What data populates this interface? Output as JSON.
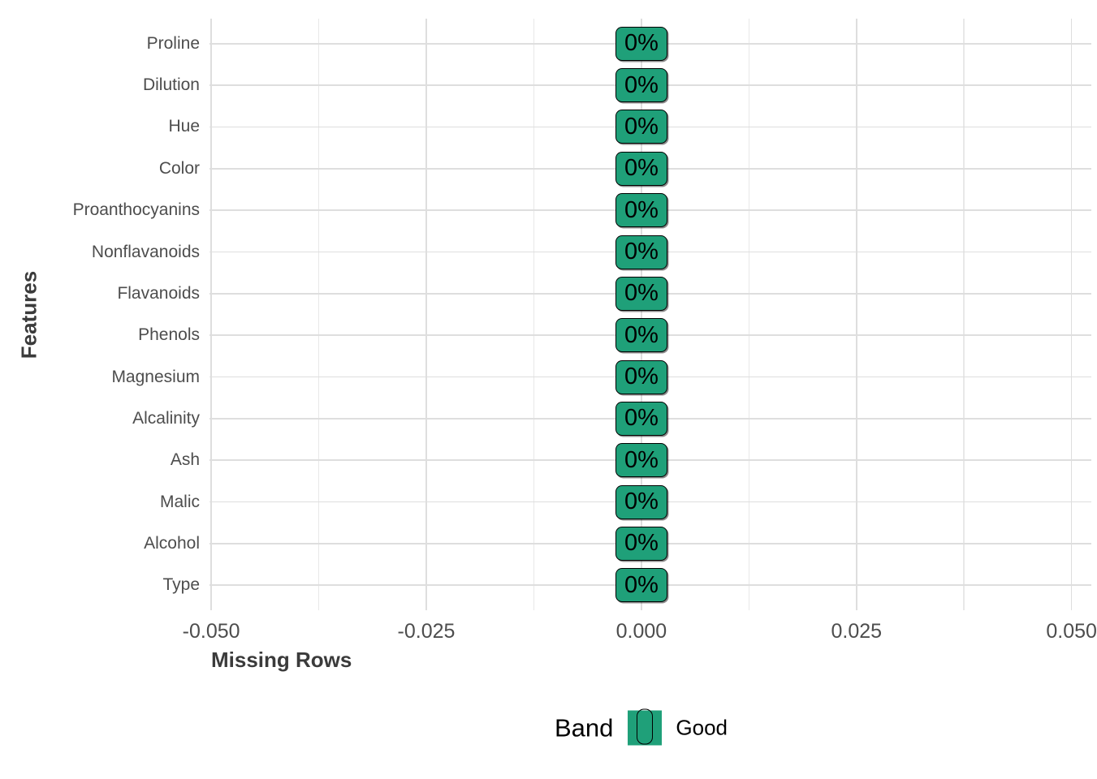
{
  "chart_data": {
    "type": "bar",
    "orientation": "horizontal",
    "title": "",
    "xlabel": "Missing Rows",
    "ylabel": "Features",
    "categories": [
      "Proline",
      "Dilution",
      "Hue",
      "Color",
      "Proanthocyanins",
      "Nonflavanoids",
      "Flavanoids",
      "Phenols",
      "Magnesium",
      "Alcalinity",
      "Ash",
      "Malic",
      "Alcohol",
      "Type"
    ],
    "series": [
      {
        "name": "Missing Rows",
        "values": [
          0,
          0,
          0,
          0,
          0,
          0,
          0,
          0,
          0,
          0,
          0,
          0,
          0,
          0
        ]
      }
    ],
    "bar_labels": [
      "0%",
      "0%",
      "0%",
      "0%",
      "0%",
      "0%",
      "0%",
      "0%",
      "0%",
      "0%",
      "0%",
      "0%",
      "0%",
      "0%"
    ],
    "x_ticks": [
      -0.05,
      -0.025,
      0.0,
      0.025,
      0.05
    ],
    "x_tick_labels": [
      "-0.050",
      "-0.025",
      "0.000",
      "0.025",
      "0.050"
    ],
    "xlim": [
      -0.0502,
      0.0523
    ],
    "grid": true,
    "legend": {
      "position": "bottom",
      "title": "Band",
      "items": [
        {
          "label": "Good",
          "color": "#1fa079"
        }
      ]
    },
    "colors": {
      "band_good_fill": "#1fa079",
      "label_border": "#000000",
      "grid_major": "#dedede",
      "grid_minor": "#e8e8e8",
      "tick_text": "#4d4d4d",
      "axis_title_text": "#3b3b3b",
      "legend_text": "#000000"
    }
  }
}
